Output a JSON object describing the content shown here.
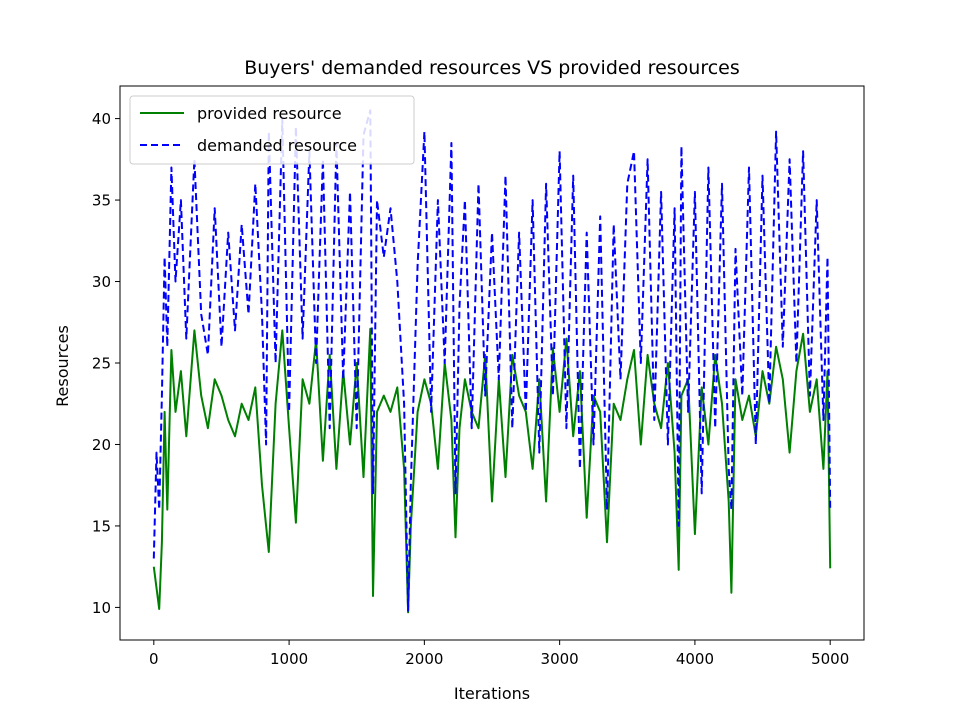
{
  "colors": {
    "provided": "#008000",
    "demanded": "#0000ff",
    "axes": "#000000",
    "background": "#ffffff"
  },
  "chart_data": {
    "type": "line",
    "title": "Buyers' demanded resources VS provided resources",
    "xlabel": "Iterations",
    "ylabel": "Resources",
    "xlim": [
      -250,
      5250
    ],
    "ylim": [
      8,
      42
    ],
    "xticks": [
      0,
      1000,
      2000,
      3000,
      4000,
      5000
    ],
    "yticks": [
      10,
      15,
      20,
      25,
      30,
      35,
      40
    ],
    "grid": false,
    "legend": {
      "placement": "top-left"
    },
    "series": [
      {
        "name": "provided resource",
        "style": "solid",
        "color": "#008000",
        "x": [
          0,
          20,
          40,
          60,
          80,
          100,
          130,
          160,
          200,
          240,
          300,
          350,
          400,
          450,
          500,
          550,
          600,
          650,
          700,
          750,
          800,
          830,
          850,
          900,
          950,
          1000,
          1050,
          1100,
          1150,
          1200,
          1250,
          1300,
          1350,
          1400,
          1450,
          1500,
          1550,
          1600,
          1620,
          1650,
          1700,
          1750,
          1800,
          1850,
          1880,
          1900,
          1950,
          2000,
          2050,
          2100,
          2150,
          2200,
          2230,
          2260,
          2300,
          2350,
          2400,
          2450,
          2500,
          2550,
          2600,
          2650,
          2700,
          2750,
          2800,
          2850,
          2900,
          2950,
          3000,
          3050,
          3100,
          3150,
          3200,
          3250,
          3300,
          3350,
          3400,
          3450,
          3500,
          3550,
          3600,
          3650,
          3700,
          3750,
          3800,
          3850,
          3880,
          3900,
          3950,
          4000,
          4050,
          4100,
          4150,
          4200,
          4250,
          4270,
          4300,
          4350,
          4400,
          4450,
          4500,
          4550,
          4600,
          4650,
          4700,
          4750,
          4800,
          4850,
          4900,
          4950,
          4980,
          5000
        ],
        "y": [
          12.5,
          11.2,
          9.9,
          14.0,
          22.0,
          16.0,
          25.8,
          22.0,
          24.5,
          20.5,
          27.0,
          23.0,
          21.0,
          24.0,
          23.0,
          21.5,
          20.5,
          22.5,
          21.5,
          23.5,
          17.5,
          15.0,
          13.4,
          22.5,
          27.0,
          21.0,
          15.2,
          24.0,
          22.5,
          26.4,
          19.0,
          25.5,
          18.5,
          24.5,
          20.0,
          25.0,
          18.0,
          27.1,
          10.7,
          22.0,
          23.0,
          22.0,
          23.5,
          18.5,
          9.7,
          15.0,
          22.0,
          24.0,
          22.5,
          18.5,
          25.0,
          21.5,
          14.3,
          21.0,
          24.0,
          22.0,
          21.0,
          25.5,
          16.5,
          24.0,
          18.0,
          25.5,
          23.0,
          22.0,
          18.5,
          24.0,
          16.5,
          25.9,
          22.0,
          26.5,
          20.5,
          24.5,
          15.5,
          23.0,
          22.0,
          14.0,
          22.5,
          21.5,
          24.0,
          25.8,
          20.0,
          25.5,
          22.5,
          21.0,
          25.0,
          19.5,
          12.3,
          23.0,
          24.0,
          14.5,
          23.5,
          20.0,
          25.5,
          22.5,
          16.5,
          10.9,
          24.0,
          21.5,
          23.0,
          20.5,
          24.5,
          22.5,
          26.0,
          24.0,
          19.5,
          24.5,
          26.8,
          22.0,
          24.0,
          18.5,
          24.5,
          12.4
        ]
      },
      {
        "name": "demanded resource",
        "style": "dashed",
        "color": "#0000ff",
        "x": [
          0,
          20,
          40,
          60,
          80,
          100,
          130,
          160,
          200,
          240,
          300,
          350,
          400,
          450,
          500,
          550,
          600,
          650,
          700,
          750,
          800,
          830,
          850,
          900,
          950,
          1000,
          1050,
          1100,
          1150,
          1200,
          1250,
          1300,
          1350,
          1400,
          1450,
          1500,
          1550,
          1600,
          1620,
          1650,
          1700,
          1750,
          1800,
          1850,
          1880,
          1900,
          1950,
          2000,
          2050,
          2100,
          2150,
          2200,
          2230,
          2260,
          2300,
          2350,
          2400,
          2450,
          2500,
          2550,
          2600,
          2650,
          2700,
          2750,
          2800,
          2850,
          2900,
          2950,
          3000,
          3050,
          3100,
          3150,
          3200,
          3250,
          3300,
          3350,
          3400,
          3450,
          3500,
          3550,
          3600,
          3650,
          3700,
          3750,
          3800,
          3850,
          3880,
          3900,
          3950,
          4000,
          4050,
          4100,
          4150,
          4200,
          4250,
          4270,
          4300,
          4350,
          4400,
          4450,
          4500,
          4550,
          4600,
          4650,
          4700,
          4750,
          4800,
          4850,
          4900,
          4950,
          4980,
          5000
        ],
        "y": [
          13.0,
          19.5,
          16.0,
          23.0,
          31.5,
          26.0,
          37.0,
          30.0,
          35.0,
          26.5,
          37.5,
          28.0,
          25.5,
          34.5,
          26.0,
          33.0,
          27.0,
          33.5,
          28.0,
          36.0,
          28.0,
          20.0,
          39.2,
          25.0,
          40.0,
          22.0,
          39.5,
          26.5,
          38.0,
          25.0,
          37.5,
          21.0,
          38.5,
          24.0,
          35.5,
          21.0,
          39.0,
          40.5,
          17.0,
          35.0,
          31.5,
          34.5,
          30.0,
          22.5,
          9.8,
          17.5,
          31.0,
          39.2,
          22.0,
          35.0,
          25.0,
          38.5,
          17.0,
          28.5,
          35.0,
          21.0,
          36.0,
          23.0,
          33.0,
          24.0,
          36.5,
          21.0,
          33.0,
          22.0,
          35.0,
          19.5,
          36.0,
          23.0,
          38.0,
          21.0,
          36.5,
          18.5,
          33.0,
          20.0,
          34.0,
          16.0,
          33.5,
          24.0,
          36.0,
          38.0,
          25.0,
          37.5,
          21.5,
          35.5,
          20.0,
          34.5,
          15.0,
          38.3,
          22.0,
          35.5,
          17.0,
          37.0,
          21.0,
          36.0,
          18.5,
          16.0,
          32.0,
          23.0,
          37.0,
          20.0,
          36.5,
          22.5,
          39.2,
          26.0,
          37.5,
          25.0,
          38.0,
          23.0,
          35.0,
          21.5,
          31.5,
          16.0
        ]
      }
    ]
  }
}
